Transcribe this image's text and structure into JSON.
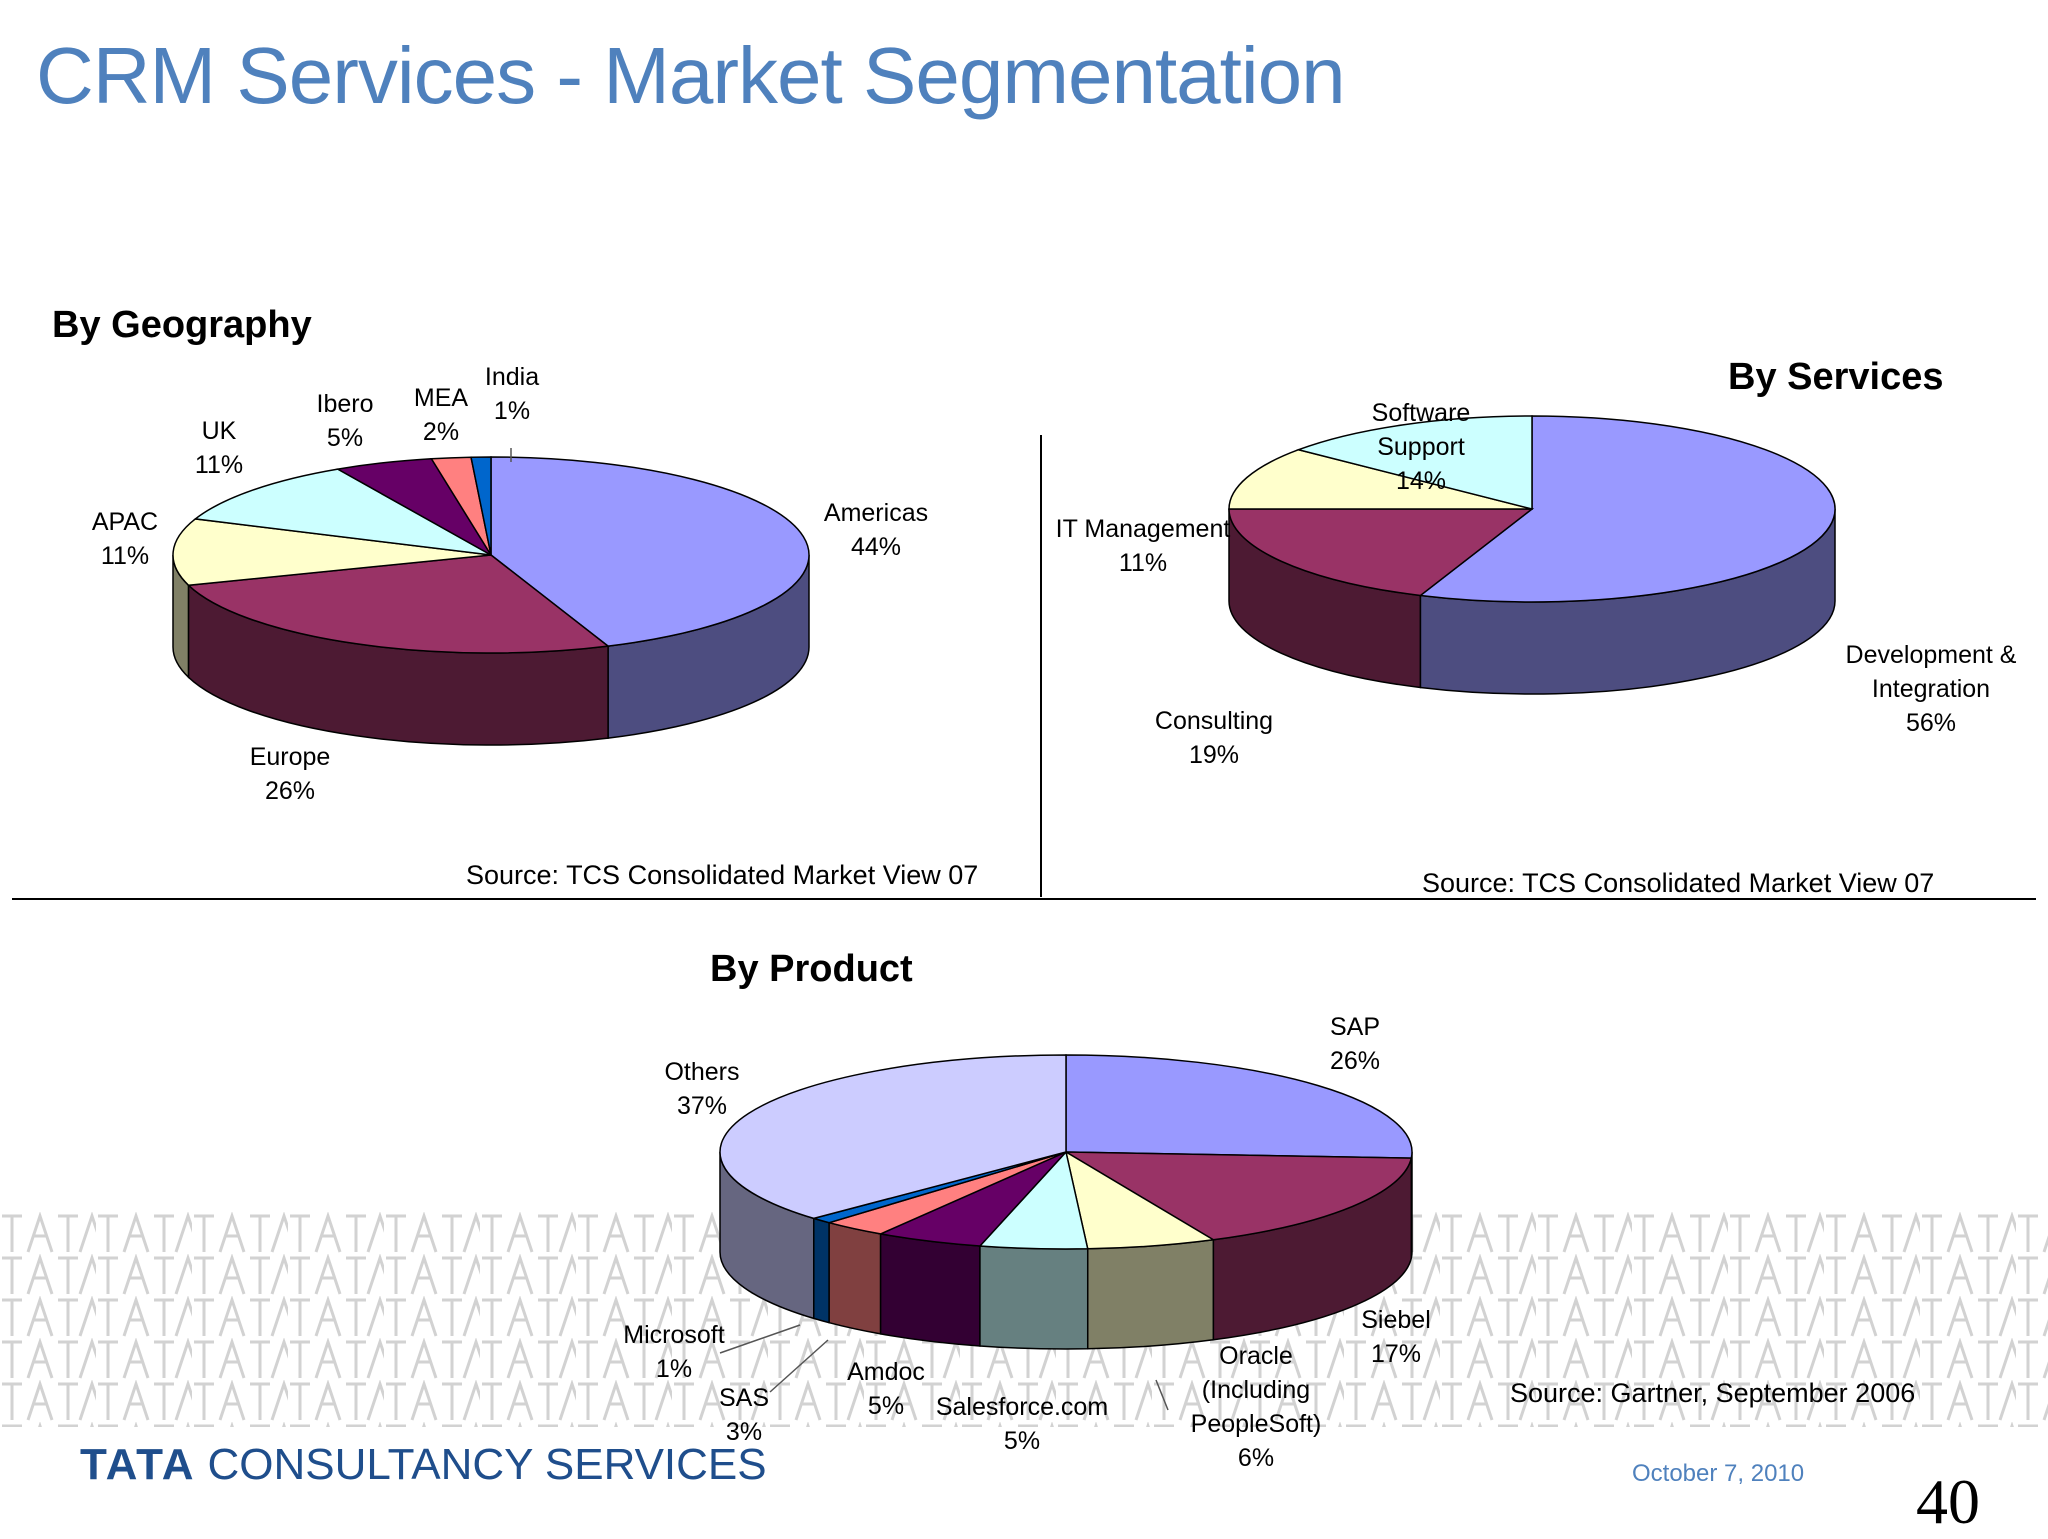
{
  "title": "CRM Services - Market Segmentation",
  "footer": {
    "logo_mark": "TATA",
    "logo_text": "CONSULTANCY SERVICES",
    "date": "October 7, 2010",
    "page_number": "40"
  },
  "chart_data": [
    {
      "type": "pie",
      "title": "By Geography",
      "source": "Source: TCS Consolidated Market View 07",
      "slices": [
        {
          "name": "Americas",
          "value": 44,
          "label": "44%",
          "color": "#9999ff"
        },
        {
          "name": "Europe",
          "value": 26,
          "label": "26%",
          "color": "#993366"
        },
        {
          "name": "APAC",
          "value": 11,
          "label": "11%",
          "color": "#ffffcc"
        },
        {
          "name": "UK",
          "value": 11,
          "label": "11%",
          "color": "#ccffff"
        },
        {
          "name": "Ibero",
          "value": 5,
          "label": "5%",
          "color": "#660066"
        },
        {
          "name": "MEA",
          "value": 2,
          "label": "2%",
          "color": "#ff8080"
        },
        {
          "name": "India",
          "value": 1,
          "label": "1%",
          "color": "#0066cc"
        }
      ]
    },
    {
      "type": "pie",
      "title": "By Services",
      "source": "Source: TCS Consolidated Market View 07",
      "slices": [
        {
          "name": "Development & Integration",
          "value": 56,
          "label": "56%",
          "color": "#9999ff"
        },
        {
          "name": "Consulting",
          "value": 19,
          "label": "19%",
          "color": "#993366"
        },
        {
          "name": "IT Management",
          "value": 11,
          "label": "11%",
          "color": "#ffffcc"
        },
        {
          "name": "Software Support",
          "value": 14,
          "label": "14%",
          "color": "#ccffff"
        }
      ]
    },
    {
      "type": "pie",
      "title": "By Product",
      "source": "Source: Gartner, September 2006",
      "slices": [
        {
          "name": "SAP",
          "value": 26,
          "label": "26%",
          "color": "#9999ff"
        },
        {
          "name": "Siebel",
          "value": 17,
          "label": "17%",
          "color": "#993366"
        },
        {
          "name": "Oracle (Including PeopleSoft)",
          "value": 6,
          "label": "6%",
          "color": "#ffffcc"
        },
        {
          "name": "Salesforce.com",
          "value": 5,
          "label": "5%",
          "color": "#ccffff"
        },
        {
          "name": "Amdoc",
          "value": 5,
          "label": "5%",
          "color": "#660066"
        },
        {
          "name": "SAS",
          "value": 3,
          "label": "3%",
          "color": "#ff8080"
        },
        {
          "name": "Microsoft",
          "value": 1,
          "label": "1%",
          "color": "#0066cc"
        },
        {
          "name": "Others",
          "value": 37,
          "label": "37%",
          "color": "#ccccff"
        }
      ]
    }
  ]
}
